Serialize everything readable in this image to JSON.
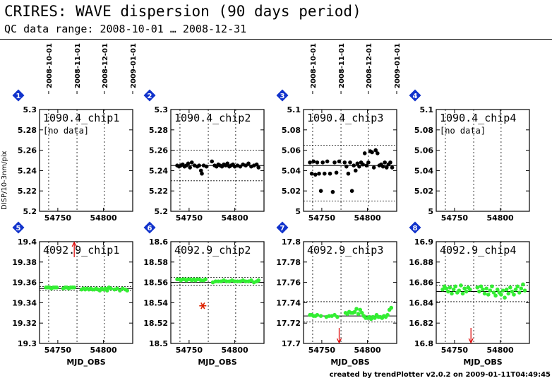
{
  "header": {
    "title": "CRIRES: WAVE dispersion (90 days period)",
    "subtitle": "QC data range: 2008-10-01 … 2008-12-31"
  },
  "footer": "created by trendPlotter v2.0.2 on 2009-01-11T04:49:45",
  "axis": {
    "top_date_labels": [
      "2008-10-01",
      "2008-11-01",
      "2008-12-01",
      "2009-01-01"
    ],
    "top_date_mjd": [
      54740,
      54771,
      54801,
      54832
    ],
    "xlabel": "MJD_OBS",
    "xlim": [
      54730,
      54832
    ],
    "xticks": [
      54750,
      54800
    ],
    "ylabel_top_row": "DISP/10-3nm/pix"
  },
  "chart_data": [
    {
      "type": "scatter",
      "panel": 1,
      "label": "1090.4_chip1",
      "note": "[no data]",
      "ylim": [
        5.2,
        5.3
      ],
      "yticks": [
        "5.2",
        "5.22",
        "5.24",
        "5.26",
        "5.28",
        "5.3"
      ],
      "color": "#000000",
      "points": [],
      "median": null,
      "band": null,
      "outliers": []
    },
    {
      "type": "scatter",
      "panel": 2,
      "label": "1090.4_chip2",
      "ylim": [
        5.2,
        5.3
      ],
      "yticks": [
        "5.2",
        "5.22",
        "5.24",
        "5.26",
        "5.28",
        "5.3"
      ],
      "color": "#000000",
      "median": 5.245,
      "band": [
        5.23,
        5.26
      ],
      "points": [
        [
          54737,
          5.245
        ],
        [
          54739,
          5.244
        ],
        [
          54741,
          5.245
        ],
        [
          54743,
          5.246
        ],
        [
          54745,
          5.244
        ],
        [
          54747,
          5.245
        ],
        [
          54749,
          5.247
        ],
        [
          54751,
          5.243
        ],
        [
          54753,
          5.248
        ],
        [
          54756,
          5.245
        ],
        [
          54759,
          5.244
        ],
        [
          54761,
          5.245
        ],
        [
          54763,
          5.24
        ],
        [
          54764,
          5.237
        ],
        [
          54766,
          5.245
        ],
        [
          54769,
          5.244
        ],
        [
          54775,
          5.249
        ],
        [
          54778,
          5.245
        ],
        [
          54780,
          5.244
        ],
        [
          54782,
          5.246
        ],
        [
          54784,
          5.245
        ],
        [
          54786,
          5.244
        ],
        [
          54788,
          5.246
        ],
        [
          54790,
          5.245
        ],
        [
          54792,
          5.247
        ],
        [
          54794,
          5.244
        ],
        [
          54796,
          5.245
        ],
        [
          54798,
          5.246
        ],
        [
          54800,
          5.244
        ],
        [
          54803,
          5.245
        ],
        [
          54806,
          5.244
        ],
        [
          54809,
          5.246
        ],
        [
          54812,
          5.245
        ],
        [
          54815,
          5.247
        ],
        [
          54818,
          5.244
        ],
        [
          54821,
          5.245
        ],
        [
          54824,
          5.246
        ],
        [
          54826,
          5.243
        ]
      ],
      "outliers": []
    },
    {
      "type": "scatter",
      "panel": 3,
      "label": "1090.4_chip3",
      "ylim": [
        5.0,
        5.1
      ],
      "yticks": [
        "5",
        "5.02",
        "5.04",
        "5.06",
        "5.08",
        "5.1"
      ],
      "color": "#000000",
      "median": 5.045,
      "band": [
        5.01,
        5.065
      ],
      "points": [
        [
          54737,
          5.048
        ],
        [
          54739,
          5.037
        ],
        [
          54741,
          5.049
        ],
        [
          54743,
          5.036
        ],
        [
          54745,
          5.048
        ],
        [
          54747,
          5.037
        ],
        [
          54749,
          5.02
        ],
        [
          54751,
          5.048
        ],
        [
          54753,
          5.037
        ],
        [
          54756,
          5.049
        ],
        [
          54759,
          5.037
        ],
        [
          54762,
          5.019
        ],
        [
          54764,
          5.048
        ],
        [
          54766,
          5.038
        ],
        [
          54769,
          5.049
        ],
        [
          54775,
          5.048
        ],
        [
          54777,
          5.044
        ],
        [
          54779,
          5.037
        ],
        [
          54781,
          5.048
        ],
        [
          54783,
          5.02
        ],
        [
          54785,
          5.045
        ],
        [
          54787,
          5.04
        ],
        [
          54789,
          5.047
        ],
        [
          54791,
          5.044
        ],
        [
          54793,
          5.048
        ],
        [
          54795,
          5.046
        ],
        [
          54797,
          5.057
        ],
        [
          54799,
          5.045
        ],
        [
          54801,
          5.048
        ],
        [
          54803,
          5.059
        ],
        [
          54805,
          5.058
        ],
        [
          54807,
          5.043
        ],
        [
          54809,
          5.06
        ],
        [
          54811,
          5.057
        ],
        [
          54813,
          5.045
        ],
        [
          54815,
          5.046
        ],
        [
          54817,
          5.044
        ],
        [
          54819,
          5.048
        ],
        [
          54821,
          5.043
        ],
        [
          54823,
          5.046
        ],
        [
          54825,
          5.048
        ],
        [
          54827,
          5.043
        ]
      ],
      "outliers": []
    },
    {
      "type": "scatter",
      "panel": 4,
      "label": "1090.4_chip4",
      "note": "[no data]",
      "ylim": [
        5.0,
        5.1
      ],
      "yticks": [
        "5",
        "5.02",
        "5.04",
        "5.06",
        "5.08",
        "5.1"
      ],
      "color": "#000000",
      "points": [],
      "median": null,
      "band": null,
      "outliers": []
    },
    {
      "type": "scatter",
      "panel": 5,
      "label": "4092.9_chip1",
      "ylim": [
        19.3,
        19.4
      ],
      "yticks": [
        "19.3",
        "19.32",
        "19.34",
        "19.36",
        "19.38",
        "19.4"
      ],
      "color": "#33ee33",
      "median": 19.354,
      "band": [
        19.352,
        19.356
      ],
      "points": [
        [
          54737,
          19.355
        ],
        [
          54739,
          19.355
        ],
        [
          54741,
          19.355
        ],
        [
          54743,
          19.354
        ],
        [
          54745,
          19.355
        ],
        [
          54747,
          19.355
        ],
        [
          54749,
          19.355
        ],
        [
          54756,
          19.354
        ],
        [
          54758,
          19.355
        ],
        [
          54760,
          19.355
        ],
        [
          54762,
          19.354
        ],
        [
          54764,
          19.355
        ],
        [
          54766,
          19.355
        ],
        [
          54768,
          19.355
        ],
        [
          54776,
          19.353
        ],
        [
          54778,
          19.354
        ],
        [
          54780,
          19.353
        ],
        [
          54782,
          19.354
        ],
        [
          54784,
          19.353
        ],
        [
          54786,
          19.354
        ],
        [
          54788,
          19.353
        ],
        [
          54790,
          19.353
        ],
        [
          54792,
          19.354
        ],
        [
          54794,
          19.353
        ],
        [
          54796,
          19.352
        ],
        [
          54798,
          19.354
        ],
        [
          54800,
          19.353
        ],
        [
          54802,
          19.354
        ],
        [
          54804,
          19.352
        ],
        [
          54806,
          19.355
        ],
        [
          54808,
          19.354
        ],
        [
          54812,
          19.353
        ],
        [
          54815,
          19.354
        ],
        [
          54818,
          19.352
        ],
        [
          54821,
          19.354
        ],
        [
          54824,
          19.353
        ],
        [
          54826,
          19.352
        ]
      ],
      "outliers": [
        {
          "x": 54768,
          "dir": "up"
        }
      ]
    },
    {
      "type": "scatter",
      "panel": 6,
      "label": "4092.9_chip2",
      "ylim": [
        18.5,
        18.6
      ],
      "yticks": [
        "18.5",
        "18.52",
        "18.54",
        "18.56",
        "18.58",
        "18.6"
      ],
      "color": "#33ee33",
      "median": 18.56,
      "band": [
        18.557,
        18.565
      ],
      "points": [
        [
          54737,
          18.563
        ],
        [
          54739,
          18.563
        ],
        [
          54741,
          18.562
        ],
        [
          54743,
          18.563
        ],
        [
          54745,
          18.563
        ],
        [
          54747,
          18.562
        ],
        [
          54749,
          18.563
        ],
        [
          54751,
          18.563
        ],
        [
          54753,
          18.562
        ],
        [
          54755,
          18.563
        ],
        [
          54757,
          18.562
        ],
        [
          54759,
          18.563
        ],
        [
          54761,
          18.563
        ],
        [
          54763,
          18.562
        ],
        [
          54766,
          18.562
        ],
        [
          54768,
          18.563
        ],
        [
          54776,
          18.56
        ],
        [
          54779,
          18.561
        ],
        [
          54782,
          18.561
        ],
        [
          54785,
          18.561
        ],
        [
          54788,
          18.562
        ],
        [
          54791,
          18.561
        ],
        [
          54794,
          18.561
        ],
        [
          54797,
          18.562
        ],
        [
          54800,
          18.561
        ],
        [
          54803,
          18.561
        ],
        [
          54806,
          18.561
        ],
        [
          54809,
          18.562
        ],
        [
          54812,
          18.561
        ],
        [
          54815,
          18.561
        ],
        [
          54818,
          18.562
        ],
        [
          54821,
          18.56
        ],
        [
          54824,
          18.561
        ],
        [
          54826,
          18.562
        ]
      ],
      "flagged": [
        {
          "x": 54765,
          "y": 18.537,
          "color": "#dd2200"
        }
      ],
      "outliers": []
    },
    {
      "type": "scatter",
      "panel": 7,
      "label": "4092.9_chip3",
      "ylim": [
        17.7,
        17.8
      ],
      "yticks": [
        "17.7",
        "17.72",
        "17.74",
        "17.76",
        "17.78",
        "17.8"
      ],
      "color": "#33ee33",
      "median": 17.727,
      "band": [
        17.721,
        17.741
      ],
      "points": [
        [
          54737,
          17.728
        ],
        [
          54739,
          17.728
        ],
        [
          54741,
          17.727
        ],
        [
          54743,
          17.727
        ],
        [
          54745,
          17.728
        ],
        [
          54749,
          17.727
        ],
        [
          54755,
          17.726
        ],
        [
          54758,
          17.727
        ],
        [
          54761,
          17.727
        ],
        [
          54764,
          17.728
        ],
        [
          54767,
          17.726
        ],
        [
          54776,
          17.73
        ],
        [
          54778,
          17.729
        ],
        [
          54780,
          17.731
        ],
        [
          54782,
          17.73
        ],
        [
          54784,
          17.73
        ],
        [
          54786,
          17.731
        ],
        [
          54788,
          17.734
        ],
        [
          54790,
          17.729
        ],
        [
          54792,
          17.733
        ],
        [
          54794,
          17.73
        ],
        [
          54796,
          17.727
        ],
        [
          54798,
          17.725
        ],
        [
          54800,
          17.725
        ],
        [
          54802,
          17.726
        ],
        [
          54804,
          17.724
        ],
        [
          54806,
          17.726
        ],
        [
          54808,
          17.725
        ],
        [
          54810,
          17.728
        ],
        [
          54812,
          17.726
        ],
        [
          54814,
          17.726
        ],
        [
          54816,
          17.725
        ],
        [
          54818,
          17.727
        ],
        [
          54820,
          17.726
        ],
        [
          54822,
          17.728
        ],
        [
          54824,
          17.733
        ],
        [
          54826,
          17.735
        ]
      ],
      "outliers": [
        {
          "x": 54769,
          "dir": "down"
        }
      ]
    },
    {
      "type": "scatter",
      "panel": 8,
      "label": "4092.9_chip4",
      "ylim": [
        16.8,
        16.9
      ],
      "yticks": [
        "16.8",
        "16.82",
        "16.84",
        "16.86",
        "16.88",
        "16.9"
      ],
      "color": "#33ee33",
      "median": 16.851,
      "band": [
        16.841,
        16.857
      ],
      "points": [
        [
          54737,
          16.853
        ],
        [
          54739,
          16.856
        ],
        [
          54741,
          16.854
        ],
        [
          54743,
          16.851
        ],
        [
          54745,
          16.855
        ],
        [
          54747,
          16.849
        ],
        [
          54749,
          16.853
        ],
        [
          54751,
          16.856
        ],
        [
          54753,
          16.85
        ],
        [
          54755,
          16.852
        ],
        [
          54757,
          16.857
        ],
        [
          54759,
          16.849
        ],
        [
          54761,
          16.854
        ],
        [
          54763,
          16.851
        ],
        [
          54765,
          16.855
        ],
        [
          54767,
          16.853
        ],
        [
          54775,
          16.855
        ],
        [
          54777,
          16.851
        ],
        [
          54779,
          16.856
        ],
        [
          54781,
          16.853
        ],
        [
          54783,
          16.849
        ],
        [
          54785,
          16.854
        ],
        [
          54787,
          16.848
        ],
        [
          54789,
          16.852
        ],
        [
          54791,
          16.856
        ],
        [
          54793,
          16.85
        ],
        [
          54795,
          16.847
        ],
        [
          54797,
          16.853
        ],
        [
          54799,
          16.85
        ],
        [
          54801,
          16.848
        ],
        [
          54803,
          16.852
        ],
        [
          54805,
          16.845
        ],
        [
          54807,
          16.853
        ],
        [
          54809,
          16.849
        ],
        [
          54811,
          16.855
        ],
        [
          54813,
          16.851
        ],
        [
          54815,
          16.848
        ],
        [
          54817,
          16.853
        ],
        [
          54819,
          16.856
        ],
        [
          54821,
          16.85
        ],
        [
          54823,
          16.854
        ],
        [
          54825,
          16.858
        ],
        [
          54827,
          16.852
        ]
      ],
      "outliers": [
        {
          "x": 54768,
          "dir": "down"
        }
      ]
    }
  ]
}
